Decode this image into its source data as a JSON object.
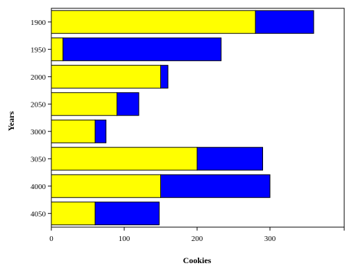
{
  "chart_data": {
    "type": "bar",
    "orientation": "horizontal",
    "stacked": true,
    "xlabel": "Cookies",
    "ylabel": "Years",
    "categories": [
      "1900",
      "1950",
      "2000",
      "2050",
      "3000",
      "3050",
      "4000",
      "4050"
    ],
    "series": [
      {
        "color": "#ffff00",
        "values": [
          280,
          16,
          150,
          90,
          60,
          200,
          150,
          60
        ]
      },
      {
        "color": "#0000ff",
        "values": [
          80,
          217,
          10,
          30,
          15,
          90,
          150,
          88
        ]
      }
    ],
    "xlim": [
      0,
      400
    ],
    "xticks": [
      "0",
      "100",
      "200",
      "300"
    ],
    "grid": false,
    "legend": "none"
  }
}
